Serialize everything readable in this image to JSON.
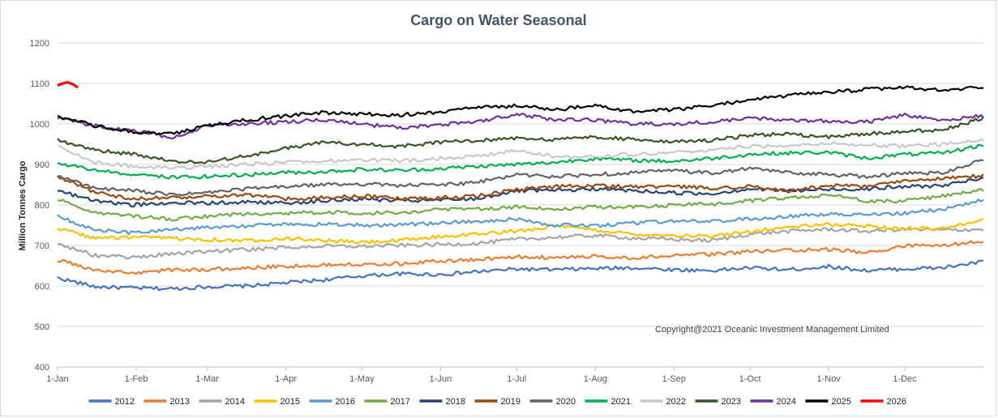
{
  "chart_data": {
    "type": "line",
    "title": "Cargo on Water Seasonal",
    "ylabel": "Million Tonnes Cargo",
    "xlabel": "",
    "ylim": [
      400,
      1200
    ],
    "yticks": [
      400,
      500,
      600,
      700,
      800,
      900,
      1000,
      1100,
      1200
    ],
    "xlim": [
      0,
      365
    ],
    "x_ticks": [
      {
        "day": 0,
        "label": "1-Jan"
      },
      {
        "day": 31,
        "label": "1-Feb"
      },
      {
        "day": 59,
        "label": "1-Mar"
      },
      {
        "day": 90,
        "label": "1-Apr"
      },
      {
        "day": 120,
        "label": "1-May"
      },
      {
        "day": 151,
        "label": "1-Jun"
      },
      {
        "day": 181,
        "label": "1-Jul"
      },
      {
        "day": 212,
        "label": "1-Aug"
      },
      {
        "day": 243,
        "label": "1-Sep"
      },
      {
        "day": 273,
        "label": "1-Oct"
      },
      {
        "day": 304,
        "label": "1-Nov"
      },
      {
        "day": 334,
        "label": "1-Dec"
      }
    ],
    "grid": "horizontal",
    "legend_position": "bottom",
    "annotation": "Copyright@2021 Oceanic Investment Management Limited",
    "series": [
      {
        "name": "2012",
        "color": "#4472c4",
        "x": [
          0,
          15,
          30,
          45,
          59,
          75,
          90,
          105,
          120,
          135,
          151,
          165,
          181,
          196,
          212,
          227,
          243,
          258,
          273,
          288,
          304,
          319,
          334,
          349,
          365
        ],
        "values": [
          620,
          598,
          595,
          593,
          598,
          600,
          608,
          615,
          625,
          630,
          628,
          635,
          642,
          640,
          643,
          645,
          640,
          638,
          645,
          640,
          648,
          638,
          642,
          645,
          660
        ]
      },
      {
        "name": "2013",
        "color": "#ed7d31",
        "x": [
          0,
          15,
          30,
          45,
          59,
          75,
          90,
          105,
          120,
          135,
          151,
          165,
          181,
          196,
          212,
          227,
          243,
          258,
          273,
          288,
          304,
          319,
          334,
          349,
          365
        ],
        "values": [
          665,
          638,
          632,
          640,
          640,
          645,
          648,
          652,
          655,
          655,
          662,
          665,
          672,
          670,
          673,
          670,
          675,
          678,
          685,
          688,
          690,
          682,
          698,
          700,
          710
        ]
      },
      {
        "name": "2014",
        "color": "#a5a5a5",
        "x": [
          0,
          15,
          30,
          45,
          59,
          75,
          90,
          105,
          120,
          135,
          151,
          165,
          181,
          196,
          212,
          227,
          243,
          258,
          273,
          288,
          304,
          319,
          334,
          349,
          365
        ],
        "values": [
          705,
          675,
          670,
          680,
          685,
          690,
          695,
          698,
          698,
          700,
          702,
          705,
          715,
          720,
          725,
          718,
          715,
          712,
          728,
          735,
          740,
          735,
          740,
          738,
          740
        ]
      },
      {
        "name": "2015",
        "color": "#ffc000",
        "x": [
          0,
          15,
          30,
          45,
          59,
          75,
          90,
          105,
          120,
          135,
          151,
          165,
          181,
          196,
          212,
          227,
          243,
          258,
          273,
          288,
          304,
          319,
          334,
          349,
          365
        ],
        "values": [
          742,
          718,
          720,
          718,
          715,
          712,
          718,
          712,
          708,
          712,
          722,
          728,
          735,
          748,
          738,
          728,
          725,
          722,
          735,
          745,
          752,
          748,
          742,
          742,
          765
        ]
      },
      {
        "name": "2016",
        "color": "#5b9bd5",
        "x": [
          0,
          15,
          30,
          45,
          59,
          75,
          90,
          105,
          120,
          135,
          151,
          165,
          181,
          196,
          212,
          227,
          243,
          258,
          273,
          288,
          304,
          319,
          334,
          349,
          365
        ],
        "values": [
          772,
          738,
          730,
          740,
          745,
          748,
          752,
          752,
          750,
          752,
          755,
          760,
          765,
          750,
          748,
          755,
          760,
          760,
          765,
          772,
          778,
          775,
          780,
          790,
          812
        ]
      },
      {
        "name": "2017",
        "color": "#70ad47",
        "x": [
          0,
          15,
          30,
          45,
          59,
          75,
          90,
          105,
          120,
          135,
          151,
          165,
          181,
          196,
          212,
          227,
          243,
          258,
          273,
          288,
          304,
          319,
          334,
          349,
          365
        ],
        "values": [
          815,
          780,
          772,
          765,
          772,
          778,
          780,
          782,
          780,
          782,
          788,
          790,
          795,
          790,
          795,
          795,
          800,
          802,
          810,
          818,
          825,
          810,
          810,
          822,
          838
        ]
      },
      {
        "name": "2018",
        "color": "#264478",
        "x": [
          0,
          15,
          30,
          45,
          59,
          75,
          90,
          105,
          120,
          135,
          151,
          165,
          181,
          196,
          212,
          227,
          243,
          258,
          273,
          288,
          304,
          319,
          334,
          349,
          365
        ],
        "values": [
          835,
          810,
          800,
          805,
          805,
          808,
          805,
          810,
          815,
          810,
          812,
          815,
          835,
          835,
          840,
          835,
          830,
          828,
          840,
          835,
          838,
          840,
          845,
          848,
          865
        ]
      },
      {
        "name": "2019",
        "color": "#9e480e",
        "x": [
          0,
          15,
          30,
          45,
          59,
          75,
          90,
          105,
          120,
          135,
          151,
          165,
          181,
          196,
          212,
          227,
          243,
          258,
          273,
          288,
          304,
          319,
          334,
          349,
          365
        ],
        "values": [
          870,
          830,
          815,
          818,
          822,
          825,
          815,
          818,
          822,
          815,
          818,
          822,
          838,
          845,
          848,
          845,
          845,
          842,
          845,
          835,
          848,
          845,
          860,
          865,
          872
        ]
      },
      {
        "name": "2020",
        "color": "#636363",
        "x": [
          0,
          15,
          30,
          45,
          59,
          75,
          90,
          105,
          120,
          135,
          151,
          165,
          181,
          196,
          212,
          227,
          243,
          258,
          273,
          288,
          304,
          319,
          334,
          349,
          365
        ],
        "values": [
          872,
          840,
          835,
          825,
          830,
          840,
          845,
          850,
          852,
          848,
          850,
          855,
          875,
          870,
          875,
          880,
          885,
          878,
          890,
          880,
          875,
          870,
          878,
          880,
          912
        ]
      },
      {
        "name": "2021",
        "color": "#00b050",
        "x": [
          0,
          15,
          30,
          45,
          59,
          75,
          90,
          105,
          120,
          135,
          151,
          165,
          181,
          196,
          212,
          227,
          243,
          258,
          273,
          288,
          304,
          319,
          334,
          349,
          365
        ],
        "values": [
          905,
          885,
          875,
          868,
          870,
          875,
          880,
          882,
          888,
          885,
          890,
          895,
          900,
          905,
          915,
          910,
          908,
          915,
          925,
          928,
          930,
          915,
          925,
          928,
          948
        ]
      },
      {
        "name": "2022",
        "color": "#c9c9c9",
        "x": [
          0,
          15,
          30,
          45,
          59,
          75,
          90,
          105,
          120,
          135,
          151,
          165,
          181,
          196,
          212,
          227,
          243,
          258,
          273,
          288,
          304,
          319,
          334,
          349,
          365
        ],
        "values": [
          945,
          905,
          895,
          890,
          895,
          900,
          905,
          908,
          912,
          908,
          915,
          920,
          935,
          920,
          920,
          925,
          930,
          935,
          945,
          948,
          952,
          948,
          945,
          950,
          960
        ]
      },
      {
        "name": "2023",
        "color": "#375623",
        "x": [
          0,
          15,
          30,
          45,
          59,
          75,
          90,
          105,
          120,
          135,
          151,
          165,
          181,
          196,
          212,
          227,
          243,
          258,
          273,
          288,
          304,
          319,
          334,
          349,
          365
        ],
        "values": [
          960,
          935,
          925,
          908,
          905,
          922,
          940,
          955,
          950,
          945,
          955,
          958,
          965,
          960,
          968,
          962,
          955,
          960,
          972,
          975,
          968,
          975,
          982,
          985,
          1015
        ]
      },
      {
        "name": "2024",
        "color": "#7030a0",
        "x": [
          0,
          15,
          30,
          45,
          59,
          75,
          90,
          105,
          120,
          135,
          151,
          165,
          181,
          196,
          212,
          227,
          243,
          258,
          273,
          288,
          304,
          319,
          334,
          349,
          365
        ],
        "values": [
          1015,
          995,
          985,
          965,
          995,
          1000,
          1005,
          1010,
          1000,
          990,
          998,
          1005,
          1025,
          1010,
          1010,
          1000,
          1000,
          1005,
          1015,
          1010,
          1008,
          1005,
          1022,
          1010,
          1020
        ]
      },
      {
        "name": "2025",
        "color": "#000000",
        "x": [
          0,
          15,
          30,
          45,
          59,
          75,
          90,
          105,
          120,
          135,
          151,
          165,
          181,
          196,
          212,
          227,
          243,
          258,
          273,
          288,
          304,
          319,
          334,
          349,
          365
        ],
        "values": [
          1020,
          995,
          980,
          975,
          995,
          1010,
          1020,
          1028,
          1025,
          1022,
          1030,
          1040,
          1045,
          1035,
          1045,
          1030,
          1035,
          1045,
          1060,
          1070,
          1078,
          1085,
          1090,
          1082,
          1092
        ]
      },
      {
        "name": "2026",
        "color": "#ff0000",
        "x": [
          0,
          2,
          4,
          6,
          8
        ],
        "values": [
          1095,
          1100,
          1103,
          1098,
          1090
        ]
      }
    ]
  }
}
